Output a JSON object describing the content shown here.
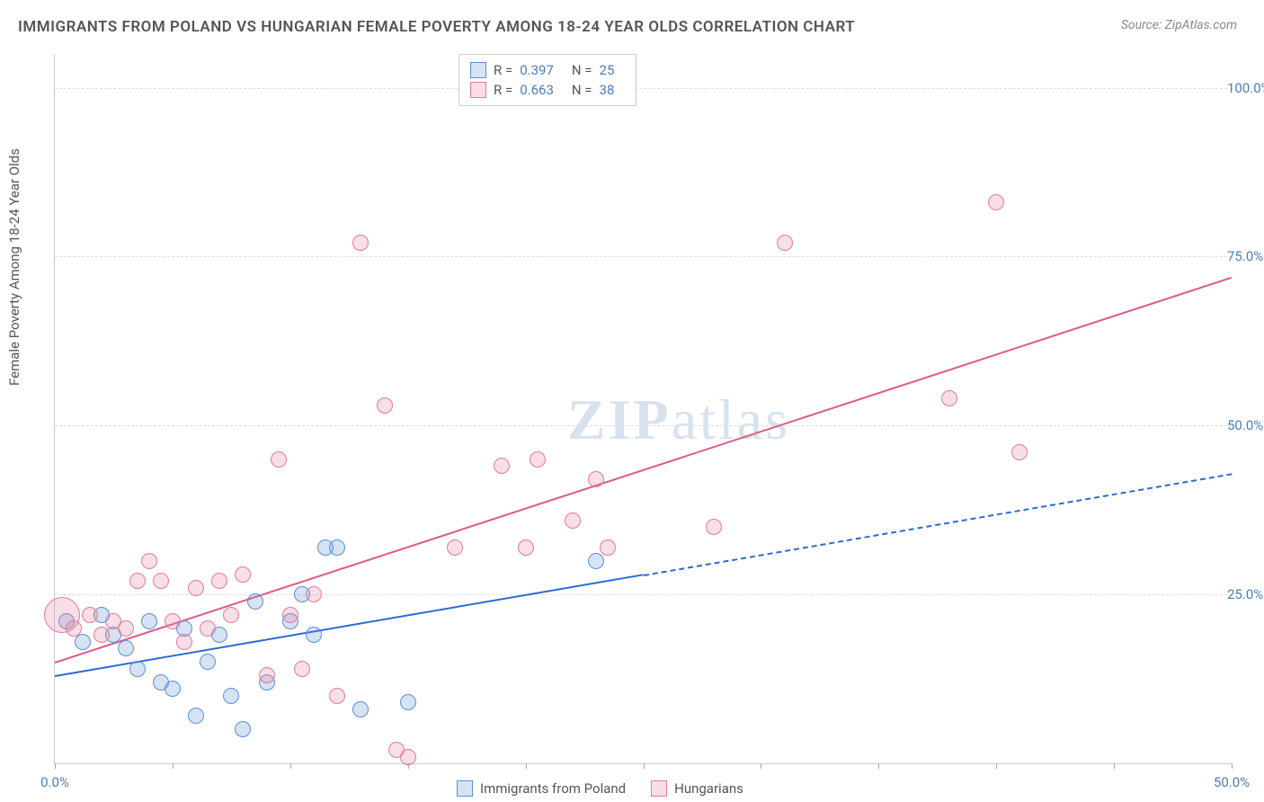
{
  "title": "IMMIGRANTS FROM POLAND VS HUNGARIAN FEMALE POVERTY AMONG 18-24 YEAR OLDS CORRELATION CHART",
  "source": "Source: ZipAtlas.com",
  "watermark_a": "ZIP",
  "watermark_b": "atlas",
  "y_axis_label": "Female Poverty Among 18-24 Year Olds",
  "chart": {
    "type": "scatter",
    "background_color": "#ffffff",
    "grid_color": "#dddddd",
    "axis_color": "#cccccc",
    "xlim": [
      0,
      50
    ],
    "ylim": [
      0,
      105
    ],
    "xticks": [
      0,
      5,
      10,
      15,
      20,
      25,
      30,
      35,
      40,
      45,
      50
    ],
    "xtick_labels": {
      "0": "0.0%",
      "50": "50.0%"
    },
    "yticks": [
      25,
      50,
      75,
      100
    ],
    "ytick_labels": {
      "25": "25.0%",
      "50": "50.0%",
      "75": "75.0%",
      "100": "100.0%"
    },
    "marker_radius": 9,
    "marker_stroke_width": 1.5,
    "marker_fill_opacity": 0.25
  },
  "series": [
    {
      "id": "poland",
      "label": "Immigrants from Poland",
      "color_stroke": "#5b8fd6",
      "color_fill": "rgba(91,143,214,0.25)",
      "R": "0.397",
      "N": "25",
      "trend": {
        "x1": 0,
        "y1": 13,
        "x2": 25,
        "y2": 28,
        "solid_until_x": 25,
        "dash_to_x": 50,
        "dash_to_y": 43,
        "color": "#2a6bd4",
        "width": 2
      },
      "points": [
        [
          0.5,
          21
        ],
        [
          1.2,
          18
        ],
        [
          2,
          22
        ],
        [
          2.5,
          19
        ],
        [
          3,
          17
        ],
        [
          3.5,
          14
        ],
        [
          4,
          21
        ],
        [
          4.5,
          12
        ],
        [
          5,
          11
        ],
        [
          5.5,
          20
        ],
        [
          6,
          7
        ],
        [
          6.5,
          15
        ],
        [
          7,
          19
        ],
        [
          7.5,
          10
        ],
        [
          8,
          5
        ],
        [
          8.5,
          24
        ],
        [
          9,
          12
        ],
        [
          10,
          21
        ],
        [
          10.5,
          25
        ],
        [
          11,
          19
        ],
        [
          11.5,
          32
        ],
        [
          12,
          32
        ],
        [
          13,
          8
        ],
        [
          15,
          9
        ],
        [
          23,
          30
        ]
      ]
    },
    {
      "id": "hungarians",
      "label": "Hungarians",
      "color_stroke": "#e47a9b",
      "color_fill": "rgba(228,122,155,0.25)",
      "R": "0.663",
      "N": "38",
      "trend": {
        "x1": 0,
        "y1": 15,
        "x2": 50,
        "y2": 72,
        "solid_until_x": 50,
        "dash_to_x": 50,
        "dash_to_y": 72,
        "color": "#e05a84",
        "width": 2
      },
      "points": [
        [
          0.3,
          22,
          20
        ],
        [
          0.8,
          20
        ],
        [
          1.5,
          22
        ],
        [
          2,
          19
        ],
        [
          2.5,
          21
        ],
        [
          3,
          20
        ],
        [
          3.5,
          27
        ],
        [
          4,
          30
        ],
        [
          4.5,
          27
        ],
        [
          5,
          21
        ],
        [
          5.5,
          18
        ],
        [
          6,
          26
        ],
        [
          6.5,
          20
        ],
        [
          7,
          27
        ],
        [
          7.5,
          22
        ],
        [
          8,
          28
        ],
        [
          9,
          13
        ],
        [
          9.5,
          45
        ],
        [
          10,
          22
        ],
        [
          10.5,
          14
        ],
        [
          11,
          25
        ],
        [
          12,
          10
        ],
        [
          13,
          77
        ],
        [
          14,
          53
        ],
        [
          14.5,
          2
        ],
        [
          15,
          1
        ],
        [
          17,
          32
        ],
        [
          19,
          44
        ],
        [
          20,
          32
        ],
        [
          20.5,
          45
        ],
        [
          22,
          36
        ],
        [
          23,
          42
        ],
        [
          23.5,
          32
        ],
        [
          28,
          35
        ],
        [
          31,
          77
        ],
        [
          38,
          54
        ],
        [
          40,
          83
        ],
        [
          41,
          46
        ]
      ]
    }
  ],
  "legend_top": {
    "R_label": "R =",
    "N_label": "N ="
  }
}
